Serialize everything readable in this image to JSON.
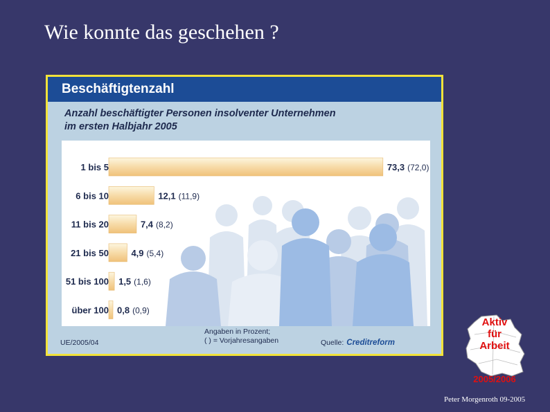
{
  "slide": {
    "title": "Wie konnte das geschehen ?",
    "author": "Peter Morgenroth 09-2005"
  },
  "card": {
    "header": "Beschäftigtenzahl",
    "subtitle_line1": "Anzahl beschäftigter Personen insolventer Unternehmen",
    "subtitle_line2": "im ersten Halbjahr 2005",
    "footer_left": "UE/2005/04",
    "note_line1": "Angaben in Prozent;",
    "note_line2": "( ) = Vorjahresangaben",
    "source_label": "Quelle:",
    "source_brand": "Creditreform"
  },
  "logo": {
    "line1": "Aktiv",
    "line2": "für",
    "line3": "Arbeit",
    "year": "2005/2006"
  },
  "chart_data": {
    "type": "bar",
    "orientation": "horizontal",
    "categories": [
      "1 bis 5",
      "6 bis 10",
      "11 bis 20",
      "21 bis 50",
      "51 bis 100",
      "über 100"
    ],
    "series": [
      {
        "values": [
          73.3,
          12.1,
          7.4,
          4.9,
          1.5,
          0.8
        ]
      }
    ],
    "labels": [
      "73,3",
      "12,1",
      "7,4",
      "4,9",
      "1,5",
      "0,8"
    ],
    "prior_labels": [
      "(72,0)",
      "(11,9)",
      "(8,2)",
      "(5,4)",
      "(1,6)",
      "(0,9)"
    ],
    "xlim": [
      0,
      80
    ],
    "colors": {
      "bar_light": "#fdf6df",
      "bar_dark": "#f0c27a"
    },
    "grid": false
  }
}
